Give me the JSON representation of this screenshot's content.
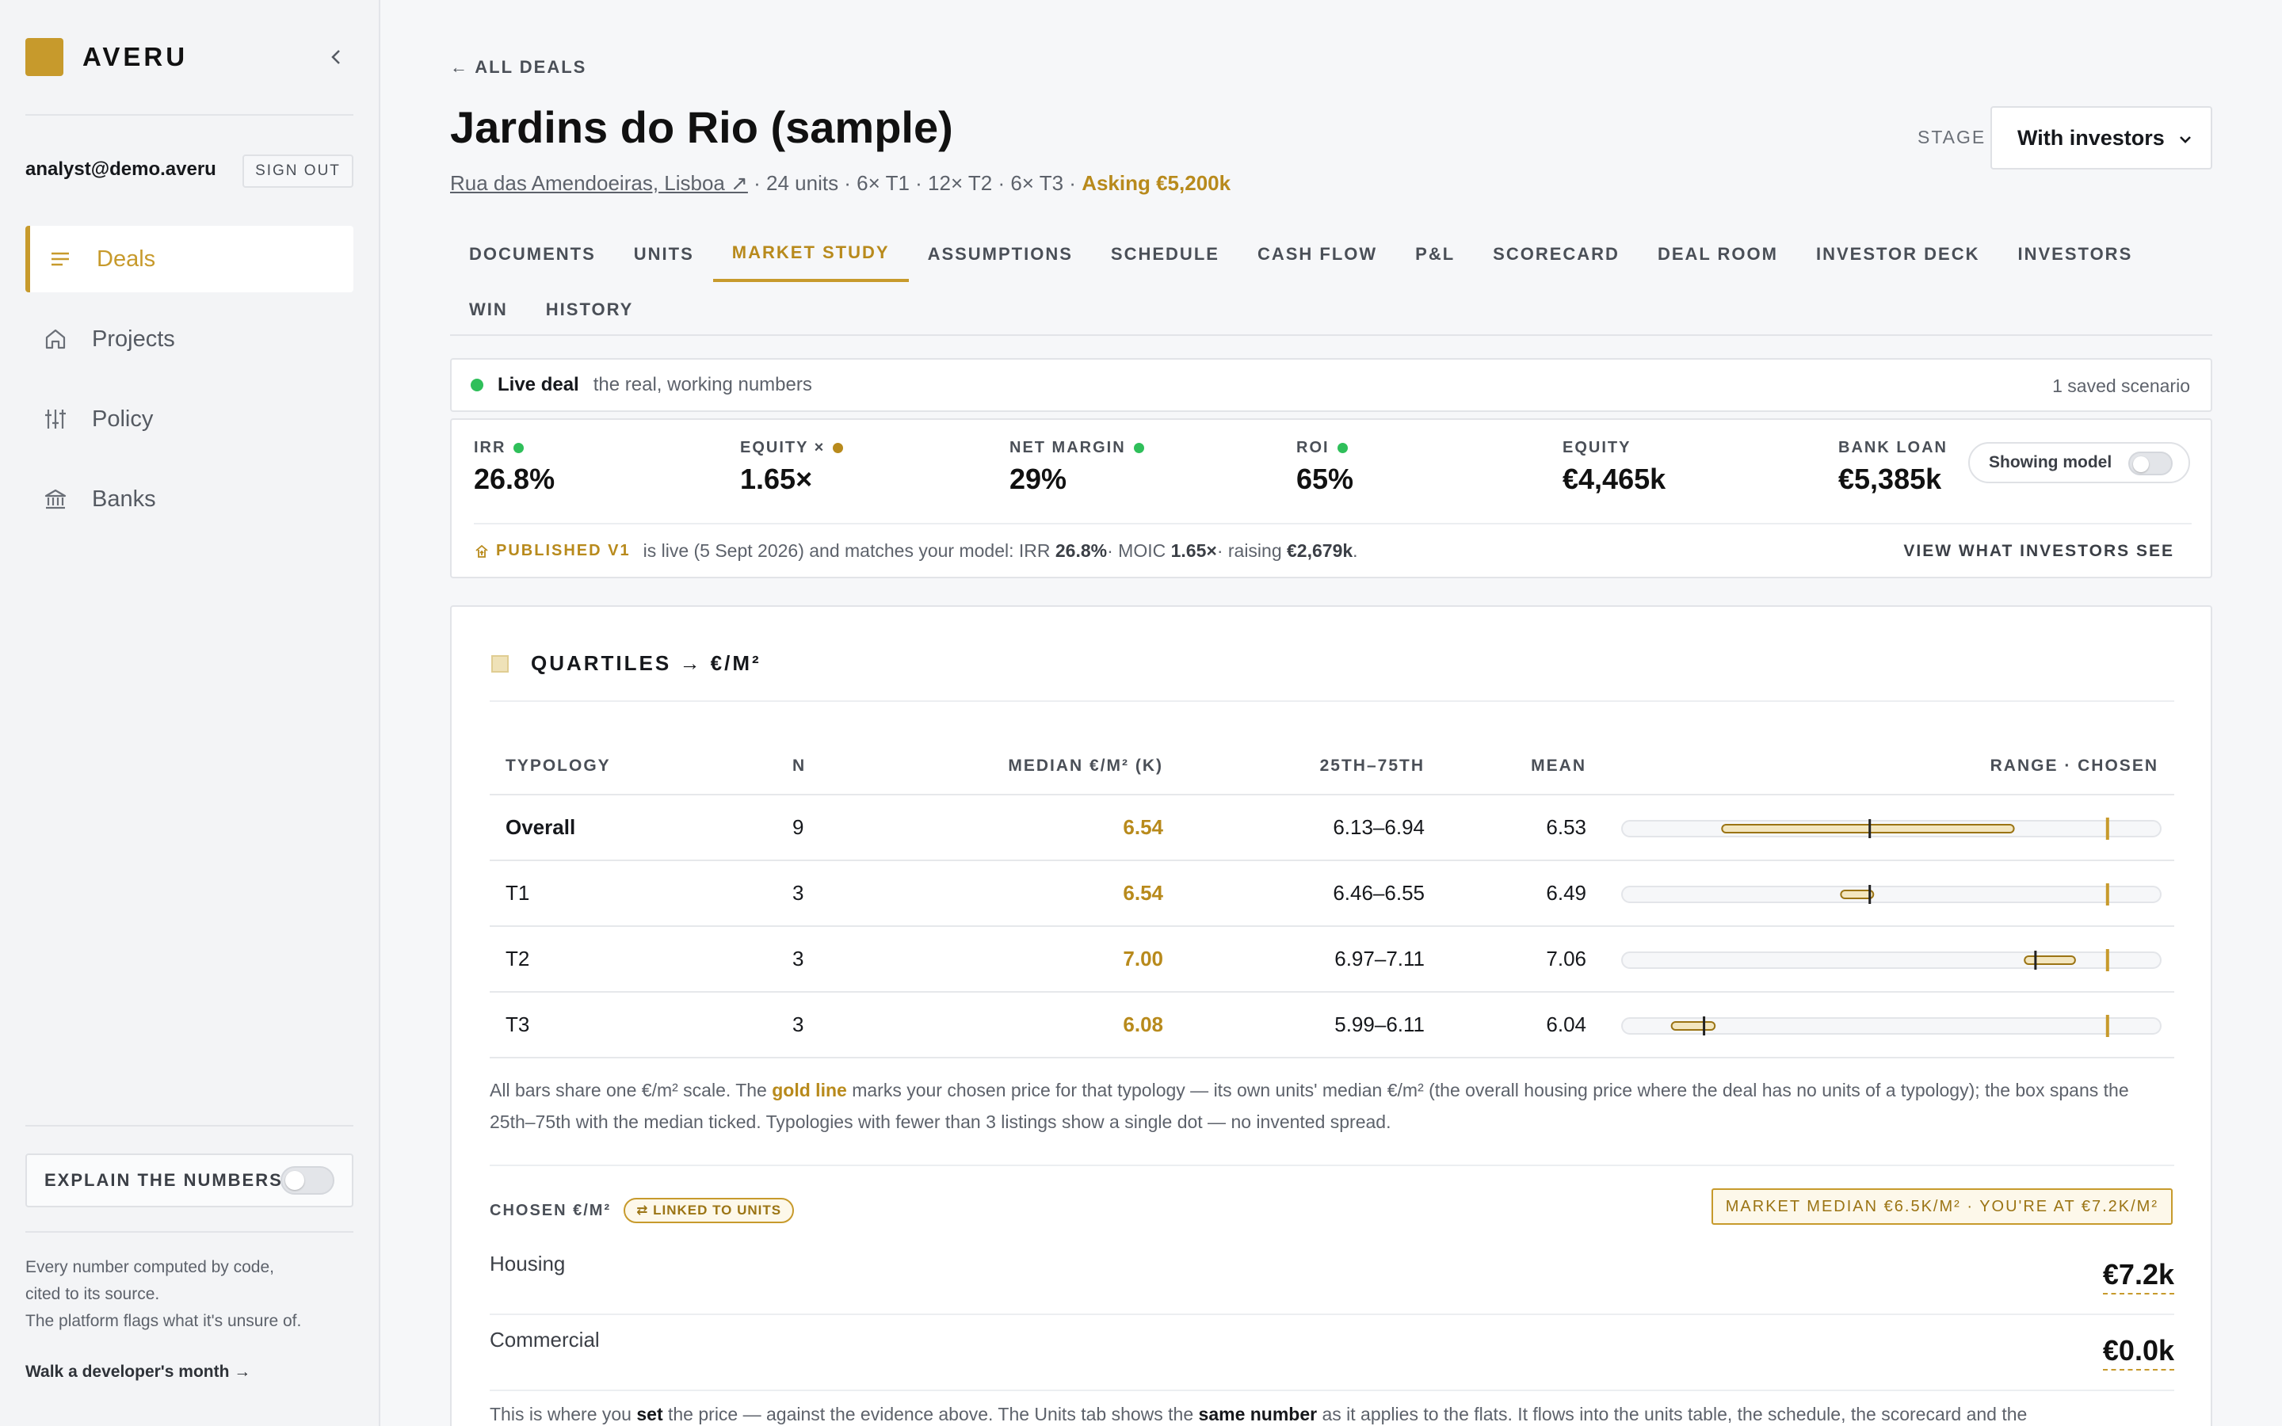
{
  "brand": {
    "name": "AVERU",
    "logo_color": "#c79a2c"
  },
  "user": {
    "email": "analyst@demo.averu",
    "signout_label": "SIGN OUT"
  },
  "nav": [
    {
      "label": "Deals",
      "icon": "lines-icon",
      "active": true
    },
    {
      "label": "Projects",
      "icon": "home-icon",
      "active": false
    },
    {
      "label": "Policy",
      "icon": "sliders-icon",
      "active": false
    },
    {
      "label": "Banks",
      "icon": "bank-icon",
      "active": false
    }
  ],
  "explain": {
    "label": "EXPLAIN THE NUMBERS"
  },
  "footnote": {
    "line1": "Every number computed by code,",
    "line2": "cited to its source.",
    "line3": "The platform flags what it's unsure of.",
    "walk_link": "Walk a developer's month →"
  },
  "deal": {
    "back_label": "← ALL DEALS",
    "title": "Jardins do Rio (sample)",
    "address": "Rua das Amendoeiras, Lisboa ↗",
    "details": " · 24 units · 6× T1 · 12× T2 · 6× T3 · ",
    "asking": "Asking €5,200k"
  },
  "stage": {
    "label": "STAGE",
    "value": "With investors"
  },
  "tabs": [
    {
      "label": "DOCUMENTS"
    },
    {
      "label": "UNITS"
    },
    {
      "label": "MARKET STUDY",
      "active": true
    },
    {
      "label": "ASSUMPTIONS"
    },
    {
      "label": "SCHEDULE"
    },
    {
      "label": "CASH FLOW"
    },
    {
      "label": "P&L"
    },
    {
      "label": "SCORECARD"
    },
    {
      "label": "DEAL ROOM"
    },
    {
      "label": "INVESTOR DECK"
    },
    {
      "label": "INVESTORS"
    },
    {
      "label": "WIN"
    },
    {
      "label": "HISTORY"
    }
  ],
  "live": {
    "strong": "Live deal",
    "sub": "the real, working numbers",
    "saved": "1 saved scenario"
  },
  "kpis": [
    {
      "label": "IRR",
      "value": "26.8%",
      "dot": "green"
    },
    {
      "label": "EQUITY ×",
      "value": "1.65×",
      "dot": "gold"
    },
    {
      "label": "NET MARGIN",
      "value": "29%",
      "dot": "green"
    },
    {
      "label": "ROI",
      "value": "65%",
      "dot": "green"
    },
    {
      "label": "EQUITY",
      "value": "€4,465k",
      "dot": null
    },
    {
      "label": "BANK LOAN",
      "value": "€5,385k",
      "dot": null
    }
  ],
  "showing_model": "Showing model",
  "published": {
    "badge": "PUBLISHED V1",
    "text1": "is live (5 Sept 2026) and matches your model: IRR ",
    "irr": "26.8%",
    "text2": " · MOIC ",
    "moic": "1.65×",
    "text3": " · raising ",
    "raising": "€2,679k",
    "text4": ".",
    "view_link": "VIEW WHAT INVESTORS SEE"
  },
  "quartiles": {
    "title": "QUARTILES → €/M²",
    "headers": {
      "typology": "TYPOLOGY",
      "n": "N",
      "median": "MEDIAN €/M² (K)",
      "iqr": "25TH–75TH",
      "mean": "MEAN",
      "range": "RANGE · CHOSEN"
    },
    "rows": [
      {
        "typology": "Overall",
        "n": "9",
        "median": "6.54",
        "iqr": "6.13–6.94",
        "mean": "6.53",
        "q1": 6.13,
        "med": 6.54,
        "q3": 6.94,
        "chosen": 7.2
      },
      {
        "typology": "T1",
        "n": "3",
        "median": "6.54",
        "iqr": "6.46–6.55",
        "mean": "6.49",
        "q1": 6.46,
        "med": 6.54,
        "q3": 6.55,
        "chosen": 7.2
      },
      {
        "typology": "T2",
        "n": "3",
        "median": "7.00",
        "iqr": "6.97–7.11",
        "mean": "7.06",
        "q1": 6.97,
        "med": 7.0,
        "q3": 7.11,
        "chosen": 7.2
      },
      {
        "typology": "T3",
        "n": "3",
        "median": "6.08",
        "iqr": "5.99–6.11",
        "mean": "6.04",
        "q1": 5.99,
        "med": 6.08,
        "q3": 6.11,
        "chosen": 7.2
      }
    ],
    "note_a": "All bars share one €/m² scale. The ",
    "note_gold": "gold line",
    "note_b": " marks your chosen price for that typology — its own units' median €/m² (the overall housing price where the deal has no units of a typology); the box spans the 25th–75th with the median ticked. Typologies with fewer than 3 listings show a single dot — no invented spread."
  },
  "chosen": {
    "label": "CHOSEN €/M²",
    "linked": "⇄ LINKED TO UNITS",
    "market_badge": "MARKET MEDIAN €6.5K/M² · YOU'RE AT €7.2K/M²",
    "housing_label": "Housing",
    "housing_value": "€7.2k",
    "commercial_label": "Commercial",
    "commercial_value": "€0.0k"
  },
  "bottom_note": {
    "t1": "This is where you ",
    "b1": "set",
    "t2": " the price — against the evidence above. The Units tab shows the ",
    "b2": "same number",
    "t3": " as it applies to the flats. It flows into the units table, the schedule, the scorecard and the"
  },
  "colors": {
    "accent": "#c79a2c",
    "green": "#2fbf5a"
  }
}
